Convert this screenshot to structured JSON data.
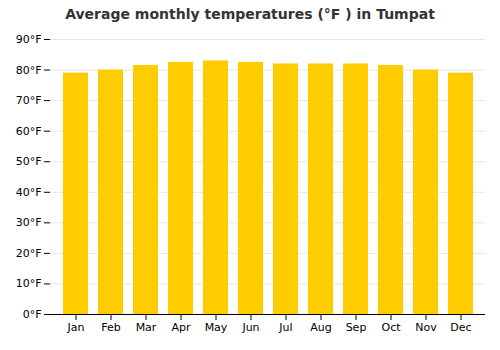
{
  "chart_data": {
    "type": "bar",
    "title": "Average monthly temperatures (°F ) in Tumpat",
    "categories": [
      "Jan",
      "Feb",
      "Mar",
      "Apr",
      "May",
      "Jun",
      "Jul",
      "Aug",
      "Sep",
      "Oct",
      "Nov",
      "Dec"
    ],
    "values": [
      79,
      80,
      81.5,
      82.5,
      83,
      82.5,
      82,
      82,
      82,
      81.5,
      80,
      79
    ],
    "color": "#FFCC00",
    "ylim": [
      0,
      90
    ],
    "yticks": [
      {
        "value": 0,
        "label": "0°F"
      },
      {
        "value": 10,
        "label": "10°F"
      },
      {
        "value": 20,
        "label": "20°F"
      },
      {
        "value": 30,
        "label": "30°F"
      },
      {
        "value": 40,
        "label": "40°F"
      },
      {
        "value": 50,
        "label": "50°F"
      },
      {
        "value": 60,
        "label": "60°F"
      },
      {
        "value": 70,
        "label": "70°F"
      },
      {
        "value": 80,
        "label": "80°F"
      },
      {
        "value": 90,
        "label": "90°F"
      }
    ],
    "grid": true
  }
}
